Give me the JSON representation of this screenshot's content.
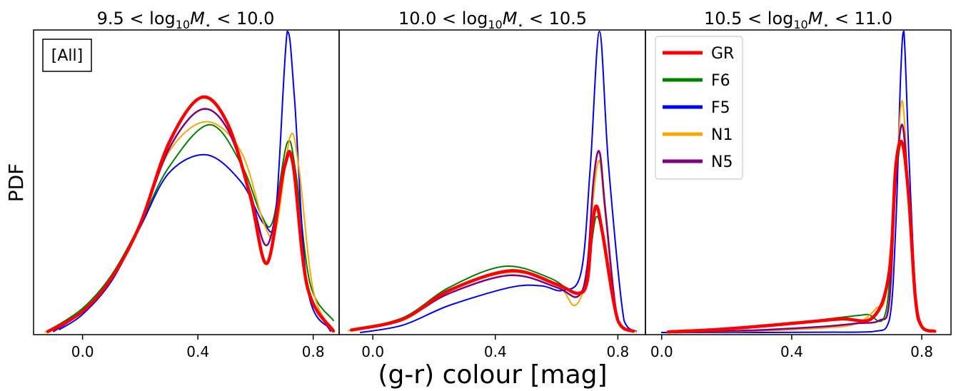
{
  "figure": {
    "ylabel": "PDF",
    "xlabel": "(g-r) colour [mag]",
    "sample_label": "[All]"
  },
  "legend": [
    {
      "name": "GR",
      "color": "#ff0000"
    },
    {
      "name": "F6",
      "color": "#008000"
    },
    {
      "name": "F5",
      "color": "#0000ff"
    },
    {
      "name": "N1",
      "color": "#ffa500"
    },
    {
      "name": "N5",
      "color": "#800080"
    }
  ],
  "chart_data": [
    {
      "type": "line",
      "title_parts": {
        "lo": "9.5",
        "hi": "10.0"
      },
      "xlim": [
        -0.17,
        0.89
      ],
      "ylim": [
        0,
        1
      ],
      "xticks": [
        0.0,
        0.4,
        0.8
      ],
      "xtick_labels": [
        "0.0",
        "0.4",
        "0.8"
      ],
      "series": [
        {
          "name": "GR",
          "color": "#ff0000",
          "width": 4.5,
          "x": [
            -0.12,
            0.0,
            0.1,
            0.2,
            0.3,
            0.41,
            0.5,
            0.58,
            0.64,
            0.7,
            0.73,
            0.78,
            0.87
          ],
          "y": [
            0.003,
            0.07,
            0.18,
            0.36,
            0.63,
            0.78,
            0.7,
            0.46,
            0.23,
            0.55,
            0.56,
            0.15,
            0.005
          ]
        },
        {
          "name": "F6",
          "color": "#008000",
          "width": 2,
          "x": [
            -0.12,
            0.0,
            0.1,
            0.2,
            0.3,
            0.44,
            0.55,
            0.62,
            0.66,
            0.71,
            0.74,
            0.79,
            0.87
          ],
          "y": [
            0.005,
            0.08,
            0.19,
            0.36,
            0.55,
            0.69,
            0.56,
            0.39,
            0.37,
            0.63,
            0.53,
            0.16,
            0.04
          ]
        },
        {
          "name": "F5",
          "color": "#0000ff",
          "width": 2,
          "x": [
            -0.08,
            0.0,
            0.1,
            0.2,
            0.3,
            0.43,
            0.55,
            0.63,
            0.67,
            0.71,
            0.735,
            0.78,
            0.86
          ],
          "y": [
            0.01,
            0.06,
            0.17,
            0.35,
            0.53,
            0.59,
            0.5,
            0.36,
            0.4,
            1.0,
            0.78,
            0.15,
            0.01
          ]
        },
        {
          "name": "N1",
          "color": "#ffa500",
          "width": 2,
          "x": [
            -0.13,
            0.0,
            0.1,
            0.2,
            0.3,
            0.43,
            0.55,
            0.63,
            0.67,
            0.72,
            0.75,
            0.8,
            0.87
          ],
          "y": [
            0.002,
            0.07,
            0.18,
            0.36,
            0.6,
            0.7,
            0.6,
            0.36,
            0.34,
            0.65,
            0.55,
            0.14,
            0.003
          ]
        },
        {
          "name": "N5",
          "color": "#800080",
          "width": 2.5,
          "x": [
            -0.1,
            0.0,
            0.1,
            0.2,
            0.3,
            0.41,
            0.5,
            0.58,
            0.64,
            0.7,
            0.73,
            0.78,
            0.86
          ],
          "y": [
            0.004,
            0.07,
            0.18,
            0.36,
            0.61,
            0.74,
            0.68,
            0.47,
            0.29,
            0.54,
            0.56,
            0.16,
            0.005
          ]
        }
      ]
    },
    {
      "type": "line",
      "title_parts": {
        "lo": "10.0",
        "hi": "10.5"
      },
      "xlim": [
        -0.11,
        0.89
      ],
      "ylim": [
        0,
        1
      ],
      "xticks": [
        0.0,
        0.4,
        0.8
      ],
      "xtick_labels": [
        "0.0",
        "0.4",
        "0.8"
      ],
      "series": [
        {
          "name": "GR",
          "color": "#ff0000",
          "width": 4.5,
          "x": [
            -0.07,
            0.1,
            0.25,
            0.45,
            0.6,
            0.67,
            0.7,
            0.715,
            0.73,
            0.75,
            0.8,
            0.85
          ],
          "y": [
            0.008,
            0.045,
            0.14,
            0.205,
            0.16,
            0.13,
            0.17,
            0.34,
            0.42,
            0.33,
            0.04,
            0.004
          ]
        },
        {
          "name": "F6",
          "color": "#008000",
          "width": 2,
          "x": [
            -0.07,
            0.1,
            0.25,
            0.43,
            0.58,
            0.66,
            0.7,
            0.715,
            0.73,
            0.75,
            0.8,
            0.85
          ],
          "y": [
            0.008,
            0.05,
            0.15,
            0.22,
            0.18,
            0.13,
            0.17,
            0.3,
            0.385,
            0.32,
            0.04,
            0.004
          ]
        },
        {
          "name": "F5",
          "color": "#0000ff",
          "width": 2,
          "x": [
            -0.04,
            0.1,
            0.25,
            0.45,
            0.55,
            0.62,
            0.68,
            0.71,
            0.74,
            0.77,
            0.82,
            0.86
          ],
          "y": [
            0.0,
            0.025,
            0.09,
            0.15,
            0.155,
            0.14,
            0.2,
            0.55,
            1.0,
            0.55,
            0.04,
            0.004
          ]
        },
        {
          "name": "N1",
          "color": "#ffa500",
          "width": 2,
          "x": [
            -0.08,
            0.1,
            0.25,
            0.45,
            0.6,
            0.66,
            0.7,
            0.72,
            0.74,
            0.76,
            0.8,
            0.86
          ],
          "y": [
            0.006,
            0.045,
            0.14,
            0.2,
            0.16,
            0.09,
            0.2,
            0.45,
            0.57,
            0.38,
            0.04,
            0.002
          ]
        },
        {
          "name": "N5",
          "color": "#800080",
          "width": 2.5,
          "x": [
            -0.07,
            0.1,
            0.25,
            0.45,
            0.6,
            0.67,
            0.7,
            0.72,
            0.74,
            0.76,
            0.8,
            0.85
          ],
          "y": [
            0.007,
            0.045,
            0.13,
            0.19,
            0.15,
            0.12,
            0.22,
            0.5,
            0.6,
            0.4,
            0.04,
            0.003
          ]
        }
      ]
    },
    {
      "type": "line",
      "title_parts": {
        "lo": "10.5",
        "hi": "11.0"
      },
      "xlim": [
        -0.05,
        0.89
      ],
      "ylim": [
        0,
        1
      ],
      "xticks": [
        0.0,
        0.4,
        0.8
      ],
      "xtick_labels": [
        "0.0",
        "0.4",
        "0.8"
      ],
      "series": [
        {
          "name": "GR",
          "color": "#ff0000",
          "width": 4.5,
          "x": [
            0.02,
            0.2,
            0.4,
            0.55,
            0.65,
            0.7,
            0.72,
            0.74,
            0.76,
            0.78,
            0.8,
            0.84
          ],
          "y": [
            0.002,
            0.012,
            0.03,
            0.045,
            0.05,
            0.2,
            0.55,
            0.63,
            0.45,
            0.12,
            0.02,
            0.004
          ]
        },
        {
          "name": "F6",
          "color": "#008000",
          "width": 2,
          "x": [
            0.02,
            0.2,
            0.4,
            0.55,
            0.63,
            0.69,
            0.72,
            0.74,
            0.76,
            0.78,
            0.8,
            0.84
          ],
          "y": [
            0.002,
            0.012,
            0.03,
            0.05,
            0.06,
            0.07,
            0.5,
            0.63,
            0.45,
            0.12,
            0.02,
            0.004
          ]
        },
        {
          "name": "F5",
          "color": "#0000ff",
          "width": 2,
          "x": [
            0.0,
            0.3,
            0.5,
            0.65,
            0.7,
            0.72,
            0.735,
            0.745,
            0.76,
            0.78,
            0.8,
            0.84
          ],
          "y": [
            0.0,
            0.0,
            0.001,
            0.003,
            0.04,
            0.35,
            0.85,
            1.0,
            0.6,
            0.15,
            0.02,
            0.002
          ]
        },
        {
          "name": "N1",
          "color": "#ffa500",
          "width": 2,
          "x": [
            0.05,
            0.3,
            0.5,
            0.6,
            0.66,
            0.69,
            0.72,
            0.74,
            0.76,
            0.78,
            0.8,
            0.83
          ],
          "y": [
            0.0,
            0.005,
            0.015,
            0.03,
            0.08,
            0.13,
            0.5,
            0.77,
            0.45,
            0.1,
            0.02,
            0.002
          ]
        },
        {
          "name": "N5",
          "color": "#800080",
          "width": 2.5,
          "x": [
            0.04,
            0.3,
            0.5,
            0.6,
            0.67,
            0.7,
            0.72,
            0.74,
            0.76,
            0.78,
            0.8,
            0.84
          ],
          "y": [
            0.0,
            0.008,
            0.02,
            0.03,
            0.04,
            0.1,
            0.5,
            0.69,
            0.45,
            0.1,
            0.02,
            0.003
          ]
        }
      ]
    }
  ]
}
